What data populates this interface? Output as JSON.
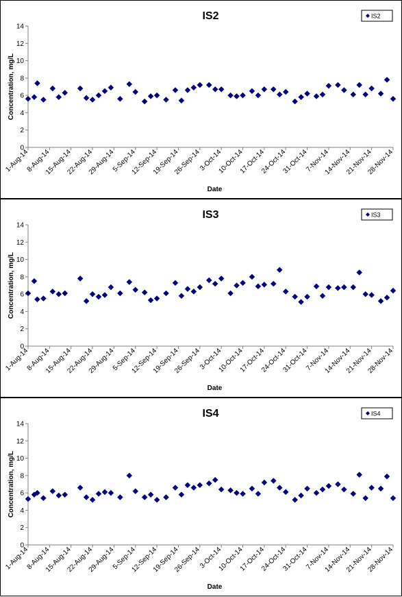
{
  "chart_data": [
    {
      "type": "scatter",
      "title": "IS2",
      "xlabel": "Date",
      "ylabel": "Concentration, mg/L",
      "ylim": [
        0,
        14
      ],
      "yticks": [
        0,
        2,
        4,
        6,
        8,
        10,
        12,
        14
      ],
      "xlim": [
        "2014-08-01",
        "2014-11-28"
      ],
      "xticks": [
        "1-Aug-14",
        "8-Aug-14",
        "15-Aug-14",
        "22-Aug-14",
        "29-Aug-14",
        "5-Sep-14",
        "12-Sep-14",
        "19-Sep-14",
        "26-Sep-14",
        "3-Oct-14",
        "10-Oct-14",
        "17-Oct-14",
        "24-Oct-14",
        "31-Oct-14",
        "7-Nov-14",
        "14-Nov-14",
        "21-Nov-14",
        "28-Nov-14"
      ],
      "grid": false,
      "legend_position": "top-right",
      "color": "#000080",
      "series": [
        {
          "name": "IS2",
          "points": [
            [
              "2014-08-01",
              5.6
            ],
            [
              "2014-08-03",
              5.8
            ],
            [
              "2014-08-04",
              7.4
            ],
            [
              "2014-08-06",
              5.5
            ],
            [
              "2014-08-09",
              6.8
            ],
            [
              "2014-08-11",
              5.8
            ],
            [
              "2014-08-13",
              6.3
            ],
            [
              "2014-08-18",
              6.8
            ],
            [
              "2014-08-20",
              5.7
            ],
            [
              "2014-08-22",
              5.5
            ],
            [
              "2014-08-24",
              6.0
            ],
            [
              "2014-08-26",
              6.5
            ],
            [
              "2014-08-28",
              6.9
            ],
            [
              "2014-08-31",
              5.6
            ],
            [
              "2014-09-03",
              7.3
            ],
            [
              "2014-09-05",
              6.4
            ],
            [
              "2014-09-08",
              5.3
            ],
            [
              "2014-09-10",
              5.9
            ],
            [
              "2014-09-12",
              6.0
            ],
            [
              "2014-09-15",
              5.5
            ],
            [
              "2014-09-18",
              6.6
            ],
            [
              "2014-09-20",
              5.4
            ],
            [
              "2014-09-22",
              6.6
            ],
            [
              "2014-09-24",
              6.9
            ],
            [
              "2014-09-26",
              7.2
            ],
            [
              "2014-09-29",
              7.2
            ],
            [
              "2014-10-01",
              6.7
            ],
            [
              "2014-10-03",
              6.7
            ],
            [
              "2014-10-06",
              6.0
            ],
            [
              "2014-10-08",
              5.9
            ],
            [
              "2014-10-10",
              6.0
            ],
            [
              "2014-10-13",
              6.5
            ],
            [
              "2014-10-15",
              6.0
            ],
            [
              "2014-10-17",
              6.7
            ],
            [
              "2014-10-20",
              6.7
            ],
            [
              "2014-10-22",
              6.1
            ],
            [
              "2014-10-24",
              6.4
            ],
            [
              "2014-10-27",
              5.3
            ],
            [
              "2014-10-29",
              5.8
            ],
            [
              "2014-10-31",
              6.2
            ],
            [
              "2014-11-03",
              5.9
            ],
            [
              "2014-11-05",
              6.1
            ],
            [
              "2014-11-07",
              7.1
            ],
            [
              "2014-11-10",
              7.2
            ],
            [
              "2014-11-12",
              6.6
            ],
            [
              "2014-11-15",
              6.1
            ],
            [
              "2014-11-17",
              7.2
            ],
            [
              "2014-11-19",
              6.1
            ],
            [
              "2014-11-21",
              6.8
            ],
            [
              "2014-11-24",
              6.2
            ],
            [
              "2014-11-26",
              7.8
            ],
            [
              "2014-11-28",
              5.6
            ]
          ]
        }
      ]
    },
    {
      "type": "scatter",
      "title": "IS3",
      "xlabel": "Date",
      "ylabel": "Concentration, mg/L",
      "ylim": [
        0,
        14
      ],
      "yticks": [
        0,
        2,
        4,
        6,
        8,
        10,
        12,
        14
      ],
      "xlim": [
        "2014-08-01",
        "2014-11-28"
      ],
      "xticks": [
        "1-Aug-14",
        "8-Aug-14",
        "15-Aug-14",
        "22-Aug-14",
        "29-Aug-14",
        "5-Sep-14",
        "12-Sep-14",
        "19-Sep-14",
        "26-Sep-14",
        "3-Oct-14",
        "10-Oct-14",
        "17-Oct-14",
        "24-Oct-14",
        "31-Oct-14",
        "7-Nov-14",
        "14-Nov-14",
        "21-Nov-14",
        "28-Nov-14"
      ],
      "grid": false,
      "legend_position": "top-right",
      "color": "#000080",
      "series": [
        {
          "name": "IS3",
          "points": [
            [
              "2014-08-01",
              6.1
            ],
            [
              "2014-08-03",
              7.5
            ],
            [
              "2014-08-04",
              5.4
            ],
            [
              "2014-08-06",
              5.5
            ],
            [
              "2014-08-09",
              6.3
            ],
            [
              "2014-08-11",
              6.0
            ],
            [
              "2014-08-13",
              6.1
            ],
            [
              "2014-08-18",
              7.8
            ],
            [
              "2014-08-20",
              5.2
            ],
            [
              "2014-08-22",
              6.0
            ],
            [
              "2014-08-24",
              5.7
            ],
            [
              "2014-08-26",
              5.9
            ],
            [
              "2014-08-28",
              6.8
            ],
            [
              "2014-08-31",
              6.1
            ],
            [
              "2014-09-03",
              7.4
            ],
            [
              "2014-09-05",
              6.5
            ],
            [
              "2014-09-08",
              6.2
            ],
            [
              "2014-09-10",
              5.3
            ],
            [
              "2014-09-12",
              5.5
            ],
            [
              "2014-09-15",
              6.1
            ],
            [
              "2014-09-18",
              7.3
            ],
            [
              "2014-09-20",
              5.8
            ],
            [
              "2014-09-22",
              6.6
            ],
            [
              "2014-09-24",
              6.3
            ],
            [
              "2014-09-26",
              6.8
            ],
            [
              "2014-09-29",
              7.6
            ],
            [
              "2014-10-01",
              7.2
            ],
            [
              "2014-10-03",
              7.8
            ],
            [
              "2014-10-06",
              6.1
            ],
            [
              "2014-10-08",
              7.0
            ],
            [
              "2014-10-10",
              7.3
            ],
            [
              "2014-10-13",
              8.0
            ],
            [
              "2014-10-15",
              6.9
            ],
            [
              "2014-10-17",
              7.1
            ],
            [
              "2014-10-20",
              7.2
            ],
            [
              "2014-10-22",
              8.8
            ],
            [
              "2014-10-24",
              6.3
            ],
            [
              "2014-10-27",
              5.7
            ],
            [
              "2014-10-29",
              5.1
            ],
            [
              "2014-10-31",
              5.7
            ],
            [
              "2014-11-03",
              6.9
            ],
            [
              "2014-11-05",
              5.8
            ],
            [
              "2014-11-07",
              6.8
            ],
            [
              "2014-11-10",
              6.7
            ],
            [
              "2014-11-12",
              6.8
            ],
            [
              "2014-11-15",
              6.8
            ],
            [
              "2014-11-17",
              8.5
            ],
            [
              "2014-11-19",
              6.0
            ],
            [
              "2014-11-21",
              5.9
            ],
            [
              "2014-11-24",
              5.2
            ],
            [
              "2014-11-26",
              5.6
            ],
            [
              "2014-11-28",
              6.4
            ]
          ]
        }
      ]
    },
    {
      "type": "scatter",
      "title": "IS4",
      "xlabel": "Date",
      "ylabel": "Concentration, mg/L",
      "ylim": [
        0,
        14
      ],
      "yticks": [
        0,
        2,
        4,
        6,
        8,
        10,
        12,
        14
      ],
      "xlim": [
        "2014-08-01",
        "2014-11-28"
      ],
      "xticks": [
        "1-Aug-14",
        "8-Aug-14",
        "15-Aug-14",
        "22-Aug-14",
        "29-Aug-14",
        "5-Sep-14",
        "12-Sep-14",
        "19-Sep-14",
        "26-Sep-14",
        "3-Oct-14",
        "10-Oct-14",
        "17-Oct-14",
        "24-Oct-14",
        "31-Oct-14",
        "7-Nov-14",
        "14-Nov-14",
        "21-Nov-14",
        "28-Nov-14"
      ],
      "grid": false,
      "legend_position": "top-right",
      "color": "#000080",
      "series": [
        {
          "name": "IS4",
          "points": [
            [
              "2014-08-01",
              5.3
            ],
            [
              "2014-08-03",
              5.8
            ],
            [
              "2014-08-04",
              6.0
            ],
            [
              "2014-08-06",
              5.4
            ],
            [
              "2014-08-09",
              6.2
            ],
            [
              "2014-08-11",
              5.7
            ],
            [
              "2014-08-13",
              5.8
            ],
            [
              "2014-08-18",
              6.6
            ],
            [
              "2014-08-20",
              5.5
            ],
            [
              "2014-08-22",
              5.2
            ],
            [
              "2014-08-24",
              5.9
            ],
            [
              "2014-08-26",
              6.1
            ],
            [
              "2014-08-28",
              6.0
            ],
            [
              "2014-08-31",
              5.5
            ],
            [
              "2014-09-03",
              8.0
            ],
            [
              "2014-09-05",
              6.2
            ],
            [
              "2014-09-08",
              5.5
            ],
            [
              "2014-09-10",
              5.8
            ],
            [
              "2014-09-12",
              5.2
            ],
            [
              "2014-09-15",
              5.5
            ],
            [
              "2014-09-18",
              6.6
            ],
            [
              "2014-09-20",
              5.8
            ],
            [
              "2014-09-22",
              6.9
            ],
            [
              "2014-09-24",
              6.6
            ],
            [
              "2014-09-26",
              6.9
            ],
            [
              "2014-09-29",
              7.1
            ],
            [
              "2014-10-01",
              7.5
            ],
            [
              "2014-10-03",
              6.4
            ],
            [
              "2014-10-06",
              6.3
            ],
            [
              "2014-10-08",
              6.0
            ],
            [
              "2014-10-10",
              5.9
            ],
            [
              "2014-10-13",
              6.5
            ],
            [
              "2014-10-15",
              5.9
            ],
            [
              "2014-10-17",
              7.2
            ],
            [
              "2014-10-20",
              7.4
            ],
            [
              "2014-10-22",
              6.6
            ],
            [
              "2014-10-24",
              6.1
            ],
            [
              "2014-10-27",
              5.2
            ],
            [
              "2014-10-29",
              5.7
            ],
            [
              "2014-10-31",
              6.5
            ],
            [
              "2014-11-03",
              6.0
            ],
            [
              "2014-11-05",
              6.4
            ],
            [
              "2014-11-07",
              6.8
            ],
            [
              "2014-11-10",
              7.0
            ],
            [
              "2014-11-12",
              6.4
            ],
            [
              "2014-11-15",
              5.9
            ],
            [
              "2014-11-17",
              8.1
            ],
            [
              "2014-11-19",
              5.4
            ],
            [
              "2014-11-21",
              6.6
            ],
            [
              "2014-11-24",
              6.5
            ],
            [
              "2014-11-26",
              7.9
            ],
            [
              "2014-11-28",
              5.4
            ]
          ]
        }
      ]
    }
  ]
}
